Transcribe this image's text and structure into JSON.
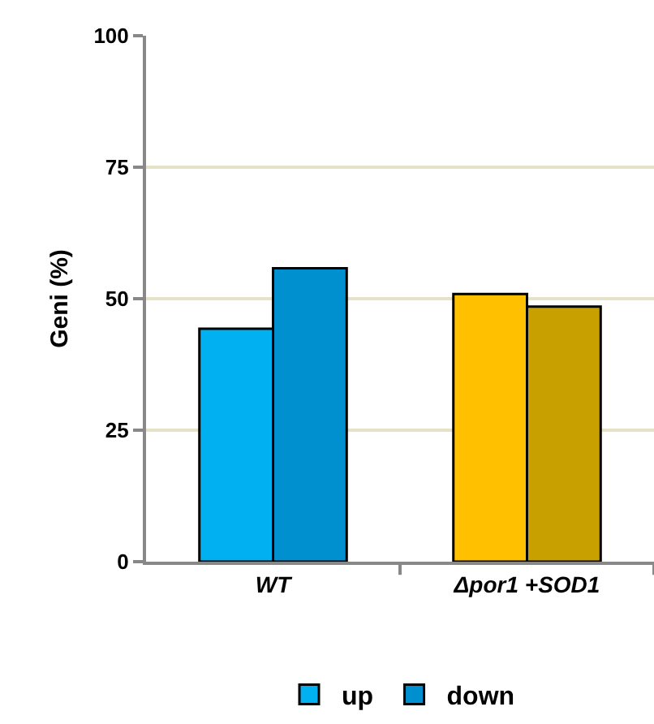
{
  "chart_data": {
    "type": "bar",
    "ylabel": "Geni (%)",
    "categories": [
      "WT",
      "Δpor1 +SOD1"
    ],
    "series": [
      {
        "name": "up",
        "colors": [
          "#00b0f0",
          "#ffc000"
        ],
        "values": [
          44.3,
          50.9
        ]
      },
      {
        "name": "down",
        "colors": [
          "#0090d0",
          "#c8a000"
        ],
        "values": [
          55.8,
          48.5
        ]
      }
    ],
    "ylim": [
      0,
      100
    ],
    "yticks": [
      0,
      25,
      50,
      75,
      100
    ],
    "grid": "y",
    "legend": "bottom"
  }
}
